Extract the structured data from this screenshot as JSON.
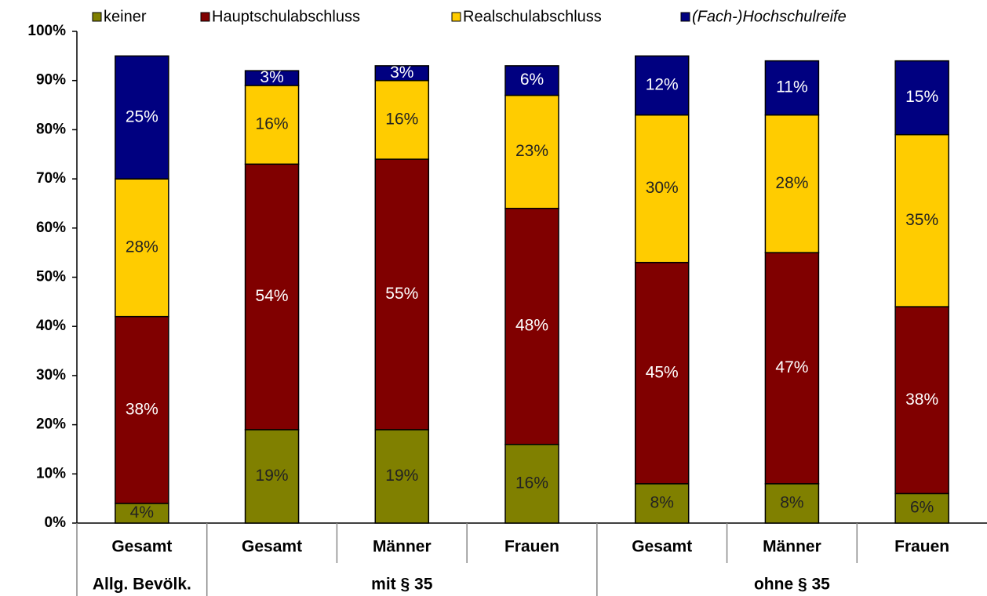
{
  "chart_data": {
    "type": "stacked_bar",
    "categories": [
      "Gesamt",
      "Gesamt",
      "Männer",
      "Frauen",
      "Gesamt",
      "Männer",
      "Frauen"
    ],
    "groups": [
      {
        "name": "Allg. Bevölk.",
        "size": 1
      },
      {
        "name": "mit § 35",
        "size": 3
      },
      {
        "name": "ohne § 35",
        "size": 3
      }
    ],
    "series": [
      {
        "name": "keiner",
        "color": "#808000",
        "values": [
          4,
          19,
          19,
          16,
          8,
          8,
          6
        ],
        "value_labels": [
          "4%",
          "19%",
          "19%",
          "16%",
          "8%",
          "8%",
          "6%"
        ]
      },
      {
        "name": "Hauptschulabschluss",
        "color": "#800000",
        "values": [
          38,
          54,
          55,
          48,
          45,
          47,
          38
        ],
        "value_labels": [
          "38%",
          "54%",
          "55%",
          "48%",
          "45%",
          "47%",
          "38%"
        ]
      },
      {
        "name": "Realschulabschluss",
        "color": "#ffcc00",
        "values": [
          28,
          16,
          16,
          23,
          30,
          28,
          35
        ],
        "value_labels": [
          "28%",
          "16%",
          "16%",
          "23%",
          "30%",
          "28%",
          "35%"
        ]
      },
      {
        "name": "(Fach-)Hochschulreife",
        "color": "#000080",
        "values": [
          25,
          3,
          3,
          6,
          12,
          11,
          15
        ],
        "value_labels": [
          "25%",
          "3%",
          "3%",
          "6%",
          "12%",
          "11%",
          "15%"
        ]
      }
    ],
    "ylim": [
      0,
      100
    ],
    "yticks": [
      {
        "value": 0,
        "label": "0%"
      },
      {
        "value": 10,
        "label": "10%"
      },
      {
        "value": 20,
        "label": "20%"
      },
      {
        "value": 30,
        "label": "30%"
      },
      {
        "value": 40,
        "label": "40%"
      },
      {
        "value": 50,
        "label": "50%"
      },
      {
        "value": 60,
        "label": "60%"
      },
      {
        "value": 70,
        "label": "70%"
      },
      {
        "value": 80,
        "label": "80%"
      },
      {
        "value": 90,
        "label": "90%"
      },
      {
        "value": 100,
        "label": "100%"
      }
    ],
    "legend": "top",
    "grid": false
  }
}
